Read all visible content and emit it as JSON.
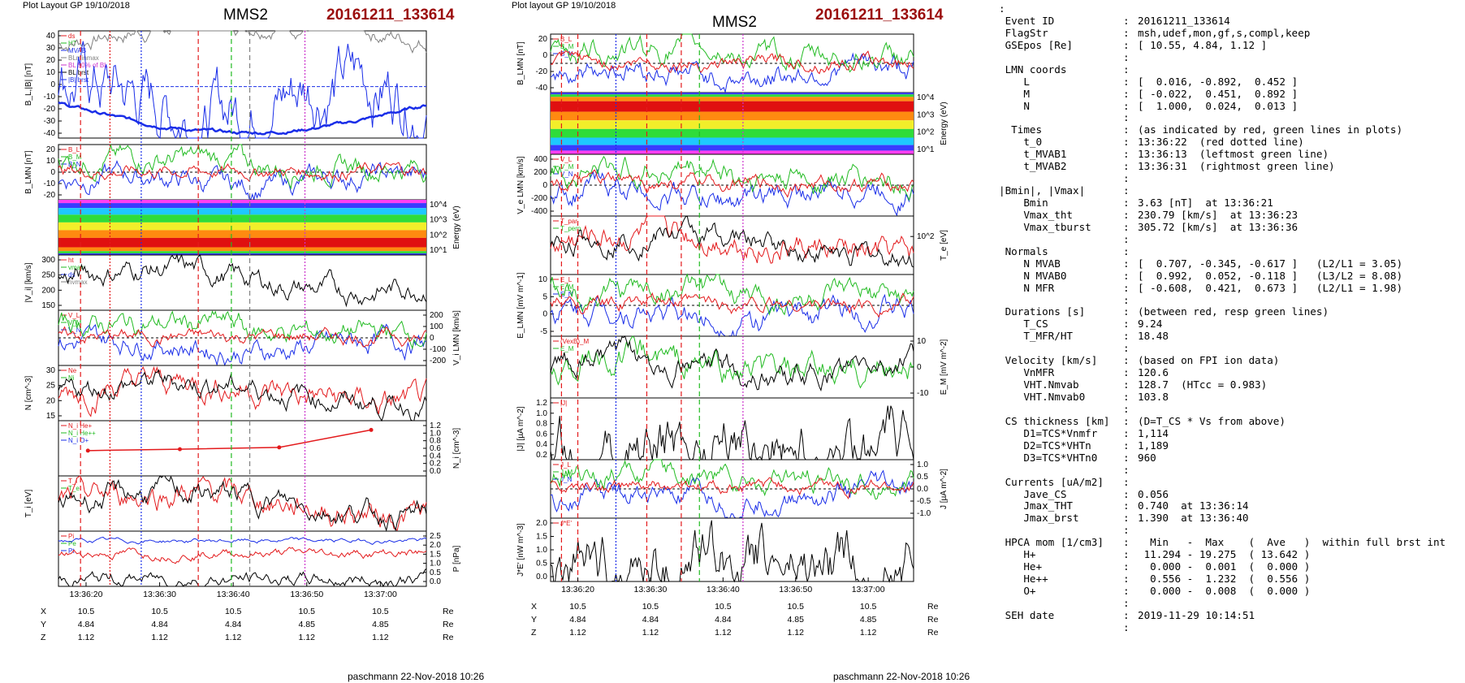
{
  "header": {
    "left_plot_label": "Plot Layout GP 19/10/2018",
    "mid_plot_label": "Plot layout GP 19/10/2018",
    "spacecraft": "MMS2",
    "event_id": "20161211_133614"
  },
  "footer": {
    "left_credit": "paschmann 22-Nov-2018 10:26",
    "mid_credit": "paschmann 22-Nov-2018 10:26"
  },
  "time_axis": {
    "tick_labels": [
      "13:36:20",
      "13:36:30",
      "13:36:40",
      "13:36:50",
      "13:37:00"
    ]
  },
  "position_table": {
    "rows": [
      {
        "label": "X",
        "values": [
          "10.5",
          "10.5",
          "10.5",
          "10.5",
          "10.5"
        ],
        "unit": "Re"
      },
      {
        "label": "Y",
        "values": [
          "4.84",
          "4.84",
          "4.84",
          "4.85",
          "4.85"
        ],
        "unit": "Re"
      },
      {
        "label": "Z",
        "values": [
          "1.12",
          "1.12",
          "1.12",
          "1.12",
          "1.12"
        ],
        "unit": "Re"
      }
    ]
  },
  "colors": {
    "event_id": "#9b0d0d",
    "red": "#e31a1c",
    "green": "#22bb22",
    "blue": "#1a2ee8",
    "magenta": "#cc33cc",
    "gray": "#808080"
  },
  "chart_data": [
    {
      "type": "line",
      "title": "MMS2 (left stack)",
      "panels": [
        {
          "ylabel": "B_L,|B| [nT]",
          "yticks": [
            "40",
            "30",
            "20",
            "10",
            "0",
            "-10",
            "-20",
            "-30",
            "-40"
          ],
          "legend": [
            "ds",
            "HT",
            "MVAB",
            "BLminmax",
            "BL 50% of BL",
            "BL brst",
            "|B| brst"
          ]
        },
        {
          "ylabel": "B_LMN [nT]",
          "yticks": [
            "20",
            "10",
            "0",
            "-10",
            "-20"
          ],
          "legend": [
            "B_L",
            "B_M",
            "B_N"
          ]
        },
        {
          "ylabel": "Energy (eV)",
          "yticks": [
            "10^4",
            "10^3",
            "10^2",
            "10^1"
          ],
          "legend": []
        },
        {
          "ylabel": "|V_i| [km/s]",
          "yticks": [
            "300",
            "250",
            "200",
            "150"
          ],
          "legend": [
            "ht",
            "vmax",
            "ds",
            "nvmax"
          ]
        },
        {
          "ylabel": "V_i LMN [km/s]",
          "yticks": [
            "200",
            "100",
            "0",
            "-100",
            "-200"
          ],
          "legend": [
            "V_L",
            "V_M",
            "V_N"
          ]
        },
        {
          "ylabel": "N [cm^-3]",
          "yticks": [
            "30",
            "25",
            "20",
            "15"
          ],
          "legend": [
            "Ne",
            "Ni"
          ]
        },
        {
          "ylabel": "N_i [cm^-3]",
          "yticks": [
            "1.2",
            "1.0",
            "0.8",
            "0.6",
            "0.4",
            "0.2",
            "0.0"
          ],
          "legend": [
            "N_i He+",
            "N_i He++",
            "N_i O+"
          ]
        },
        {
          "ylabel": "T_i [eV]",
          "yticks": [],
          "legend": [
            "T_i",
            "T_e"
          ]
        },
        {
          "ylabel": "P [nPa]",
          "yticks": [
            "2.5",
            "2.0",
            "1.5",
            "1.0",
            "0.5",
            "0.0"
          ],
          "legend": [
            "Pi",
            "Pe",
            "Pt"
          ]
        }
      ]
    },
    {
      "type": "line",
      "title": "MMS2 (middle stack)",
      "panels": [
        {
          "ylabel": "B_LMN [nT]",
          "yticks": [
            "20",
            "0",
            "-20",
            "-40"
          ],
          "legend": [
            "B_L",
            "B_M",
            "B_N"
          ]
        },
        {
          "ylabel": "Energy (eV)",
          "yticks": [
            "10^4",
            "10^3",
            "10^2",
            "10^1"
          ],
          "legend": []
        },
        {
          "ylabel": "V_e LMN [km/s]",
          "yticks": [
            "400",
            "200",
            "0",
            "-200",
            "-400"
          ],
          "legend": [
            "V_L",
            "V_M",
            "V_N"
          ]
        },
        {
          "ylabel": "T_e [eV]",
          "yticks": [
            "10^2"
          ],
          "legend": [
            "T_par",
            "T_perp"
          ]
        },
        {
          "ylabel": "E_LMN [mV m^-1]",
          "yticks": [
            "10",
            "5",
            "0",
            "-5"
          ],
          "legend": [
            "E_L",
            "E_M",
            "E_N"
          ]
        },
        {
          "ylabel": "E_M [mV m^-2]",
          "yticks": [
            "10",
            "0",
            "-10"
          ],
          "legend": [
            "(VexB)_M",
            "E_M"
          ]
        },
        {
          "ylabel": "|J| [µA m^-2]",
          "yticks": [
            "1.2",
            "1.0",
            "0.8",
            "0.6",
            "0.4",
            "0.2"
          ],
          "legend": [
            "|J|"
          ]
        },
        {
          "ylabel": "J [µA m^-2]",
          "yticks": [
            "1.0",
            "0.5",
            "0.0",
            "-0.5",
            "-1.0"
          ],
          "legend": [
            "J_L",
            "J_M",
            "J_N"
          ]
        },
        {
          "ylabel": "J*E' [nW m^-3]",
          "yticks": [
            "2.0",
            "1.5",
            "1.0",
            "0.5",
            "0.0"
          ],
          "legend": [
            "J*E'"
          ]
        }
      ]
    }
  ],
  "info_panel": {
    "lines": [
      {
        "k": ":",
        "c": "",
        "v": ""
      },
      {
        "k": " Event ID",
        "c": ":",
        "v": "20161211_133614"
      },
      {
        "k": " FlagStr",
        "c": ":",
        "v": "msh,udef,mon,gf,s,compl,keep"
      },
      {
        "k": " GSEpos [Re]",
        "c": ":",
        "v": "[ 10.55, 4.84, 1.12 ]"
      },
      {
        "k": "",
        "c": ":",
        "v": ""
      },
      {
        "k": " LMN coords",
        "c": ":",
        "v": ""
      },
      {
        "k": "    L",
        "c": ":",
        "v": "[  0.016, -0.892,  0.452 ]"
      },
      {
        "k": "    M",
        "c": ":",
        "v": "[ -0.022,  0.451,  0.892 ]"
      },
      {
        "k": "    N",
        "c": ":",
        "v": "[  1.000,  0.024,  0.013 ]"
      },
      {
        "k": "",
        "c": ":",
        "v": ""
      },
      {
        "k": "  Times",
        "c": ":",
        "v": "(as indicated by red, green lines in plots)"
      },
      {
        "k": "    t_0",
        "c": ":",
        "v": "13:36:22  (red dotted line)"
      },
      {
        "k": "    t_MVAB1",
        "c": ":",
        "v": "13:36:13  (leftmost green line)"
      },
      {
        "k": "    t_MVAB2",
        "c": ":",
        "v": "13:36:31  (rightmost green line)"
      },
      {
        "k": "",
        "c": ":",
        "v": ""
      },
      {
        "k": "|Bmin|, |Vmax|",
        "c": ":",
        "v": ""
      },
      {
        "k": "    Bmin",
        "c": ":",
        "v": "3.63 [nT]  at 13:36:21"
      },
      {
        "k": "    Vmax_tht",
        "c": ":",
        "v": "230.79 [km/s]  at 13:36:23"
      },
      {
        "k": "    Vmax_tburst",
        "c": ":",
        "v": "305.72 [km/s]  at 13:36:36"
      },
      {
        "k": "",
        "c": ":",
        "v": ""
      },
      {
        "k": " Normals",
        "c": ":",
        "v": ""
      },
      {
        "k": "    N MVAB",
        "c": ":",
        "v": "[  0.707, -0.345, -0.617 ]   (L2/L1 = 3.05)"
      },
      {
        "k": "    N MVAB0",
        "c": ":",
        "v": "[  0.992,  0.052, -0.118 ]   (L3/L2 = 8.08)"
      },
      {
        "k": "    N MFR",
        "c": ":",
        "v": "[ -0.608,  0.421,  0.673 ]   (L2/L1 = 1.98)"
      },
      {
        "k": "",
        "c": ":",
        "v": ""
      },
      {
        "k": " Durations [s]",
        "c": ":",
        "v": "(between red, resp green lines)"
      },
      {
        "k": "    T_CS",
        "c": ":",
        "v": "9.24"
      },
      {
        "k": "    T_MFR/HT",
        "c": ":",
        "v": "18.48"
      },
      {
        "k": "",
        "c": ":",
        "v": ""
      },
      {
        "k": " Velocity [km/s]",
        "c": ":",
        "v": "(based on FPI ion data)"
      },
      {
        "k": "    VnMFR",
        "c": ":",
        "v": "120.6"
      },
      {
        "k": "    VHT.Nmvab",
        "c": ":",
        "v": "128.7  (HTcc = 0.983)"
      },
      {
        "k": "    VHT.Nmvab0",
        "c": ":",
        "v": "103.8"
      },
      {
        "k": "",
        "c": ":",
        "v": ""
      },
      {
        "k": " CS thickness [km]",
        "c": ":",
        "v": "(D=T_CS * Vs from above)"
      },
      {
        "k": "    D1=TCS*Vnmfr",
        "c": ":",
        "v": "1,114"
      },
      {
        "k": "    D2=TCS*VHTn",
        "c": ":",
        "v": "1,189"
      },
      {
        "k": "    D3=TCS*VHTn0",
        "c": ":",
        "v": "960"
      },
      {
        "k": "",
        "c": ":",
        "v": ""
      },
      {
        "k": " Currents [uA/m2]",
        "c": ":",
        "v": ""
      },
      {
        "k": "    Jave_CS",
        "c": ":",
        "v": "0.056"
      },
      {
        "k": "    Jmax_THT",
        "c": ":",
        "v": "0.740  at 13:36:14"
      },
      {
        "k": "    Jmax_brst",
        "c": ":",
        "v": "1.390  at 13:36:40"
      },
      {
        "k": "",
        "c": ":",
        "v": ""
      },
      {
        "k": " HPCA mom [1/cm3]",
        "c": ":",
        "v": "  Min   -  Max    (  Ave   )  within full brst int"
      },
      {
        "k": "    H+",
        "c": ":",
        "v": " 11.294 - 19.275  ( 13.642 )"
      },
      {
        "k": "    He+",
        "c": ":",
        "v": "  0.000 -  0.001  (  0.000 )"
      },
      {
        "k": "    He++",
        "c": ":",
        "v": "  0.556 -  1.232  (  0.556 )"
      },
      {
        "k": "    O+",
        "c": ":",
        "v": "  0.000 -  0.008  (  0.000 )"
      },
      {
        "k": "",
        "c": ":",
        "v": ""
      },
      {
        "k": " SEH date",
        "c": ":",
        "v": "2019-11-29 10:14:51"
      },
      {
        "k": "",
        "c": ":",
        "v": ""
      }
    ]
  }
}
